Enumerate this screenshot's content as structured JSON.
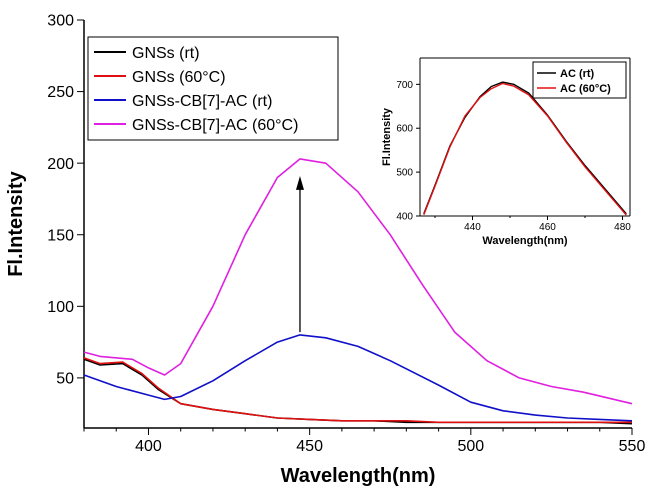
{
  "chart_data": [
    {
      "type": "line",
      "xlabel": "Wavelength(nm)",
      "ylabel": "Fl.Intensity",
      "xlim": [
        380,
        550
      ],
      "ylim": [
        15,
        300
      ],
      "xticks": [
        400,
        450,
        500,
        550
      ],
      "yticks": [
        50,
        100,
        150,
        200,
        250,
        300
      ],
      "legend_position": "top-left",
      "grid": false,
      "annotation": "upward arrow at 447 nm from ~80 to ~200",
      "series": [
        {
          "name": "GNSs (rt)",
          "color": "#000000",
          "x": [
            380,
            385,
            392,
            398,
            403,
            410,
            420,
            430,
            440,
            450,
            460,
            470,
            480,
            490,
            500,
            510,
            520,
            530,
            540,
            550
          ],
          "y": [
            63,
            59,
            60,
            52,
            42,
            32,
            28,
            25,
            22,
            21,
            20,
            20,
            19,
            19,
            19,
            19,
            19,
            19,
            19,
            18
          ]
        },
        {
          "name": "GNSs (60°C)",
          "color": "#e01010",
          "x": [
            380,
            385,
            392,
            398,
            403,
            410,
            420,
            430,
            440,
            450,
            460,
            470,
            480,
            490,
            500,
            510,
            520,
            530,
            540,
            550
          ],
          "y": [
            64,
            60,
            61,
            53,
            43,
            32,
            28,
            25,
            22,
            21,
            20,
            20,
            20,
            19,
            19,
            19,
            19,
            19,
            19,
            19
          ]
        },
        {
          "name": "GNSs-CB[7]-AC (rt)",
          "color": "#1010c8",
          "x": [
            380,
            390,
            400,
            405,
            410,
            420,
            430,
            440,
            447,
            455,
            465,
            475,
            490,
            500,
            510,
            520,
            530,
            540,
            550
          ],
          "y": [
            52,
            44,
            38,
            35,
            37,
            48,
            62,
            75,
            80,
            78,
            72,
            62,
            45,
            33,
            27,
            24,
            22,
            21,
            20
          ]
        },
        {
          "name": "GNSs-CB[7]-AC (60°C)",
          "color": "#e020e0",
          "x": [
            380,
            385,
            395,
            400,
            405,
            410,
            420,
            430,
            440,
            447,
            455,
            465,
            475,
            485,
            495,
            505,
            515,
            525,
            535,
            550
          ],
          "y": [
            68,
            65,
            63,
            57,
            52,
            60,
            100,
            150,
            190,
            203,
            200,
            180,
            150,
            115,
            82,
            62,
            50,
            44,
            40,
            32
          ]
        }
      ]
    },
    {
      "type": "line",
      "inset": true,
      "xlabel": "Wavelength(nm)",
      "ylabel": "Fl.Intensity",
      "xlim": [
        426,
        482
      ],
      "ylim": [
        400,
        760
      ],
      "xticks": [
        440,
        460,
        480
      ],
      "yticks": [
        400,
        500,
        600,
        700
      ],
      "legend_position": "top-right",
      "series": [
        {
          "name": "AC (rt)",
          "color": "#000000",
          "x": [
            427,
            430,
            434,
            438,
            442,
            445,
            448,
            451,
            455,
            460,
            465,
            470,
            475,
            481
          ],
          "y": [
            405,
            470,
            560,
            625,
            672,
            695,
            705,
            700,
            680,
            630,
            570,
            515,
            465,
            405
          ]
        },
        {
          "name": "AC (60°C)",
          "color": "#e01010",
          "x": [
            427,
            430,
            434,
            438,
            442,
            445,
            448,
            451,
            455,
            460,
            465,
            470,
            475,
            481
          ],
          "y": [
            403,
            468,
            558,
            628,
            670,
            690,
            702,
            696,
            676,
            628,
            568,
            512,
            462,
            402
          ]
        }
      ]
    }
  ]
}
